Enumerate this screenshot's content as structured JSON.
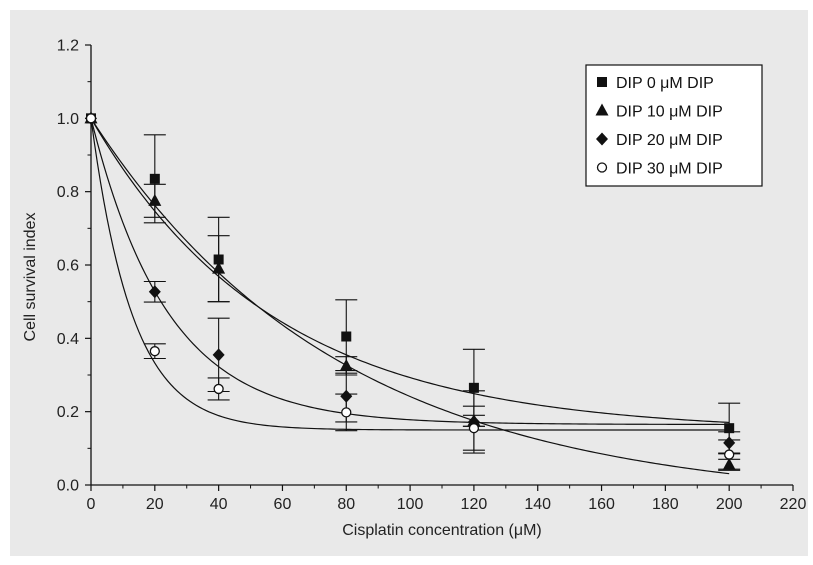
{
  "chart_data": {
    "type": "scatter",
    "title": "",
    "xlabel": "Cisplatin concentration (μM)",
    "ylabel": "Cell survival index",
    "xlim": [
      0,
      220
    ],
    "ylim": [
      0,
      1.2
    ],
    "x_ticks": [
      0,
      20,
      40,
      60,
      80,
      100,
      120,
      140,
      160,
      180,
      200,
      220
    ],
    "y_ticks": [
      0.0,
      0.2,
      0.4,
      0.6,
      0.8,
      1.0,
      1.2
    ],
    "x_tick_labels": [
      "0",
      "20",
      "40",
      "60",
      "80",
      "100",
      "120",
      "140",
      "160",
      "180",
      "200",
      "220"
    ],
    "y_tick_labels": [
      "0.0",
      "0.2",
      "0.4",
      "0.6",
      "0.8",
      "1.0",
      "1.2"
    ],
    "grid": false,
    "legend_position": "top-right",
    "fit_lines": true,
    "x": [
      0,
      20,
      40,
      80,
      120,
      200
    ],
    "series": [
      {
        "name": "DIP   0 μM DIP",
        "marker": "square-filled",
        "values": [
          1.0,
          0.835,
          0.615,
          0.405,
          0.265,
          0.155
        ],
        "errors": [
          0,
          0.12,
          0.115,
          0.1,
          0.105,
          0.068
        ],
        "fit": {
          "y0": 0.145,
          "A": 0.855,
          "t": 57
        }
      },
      {
        "name": "DIP 10 μM DIP",
        "marker": "triangle-filled",
        "values": [
          1.0,
          0.775,
          0.59,
          0.325,
          0.175,
          0.055
        ],
        "errors": [
          0,
          0.045,
          0.09,
          0.025,
          0.015,
          0.015
        ],
        "fit": {
          "y0": -0.05,
          "A": 1.05,
          "t": 78
        }
      },
      {
        "name": "DIP 20 μM DIP",
        "marker": "diamond-filled",
        "values": [
          1.0,
          0.527,
          0.355,
          0.242,
          0.172,
          0.115
        ],
        "errors": [
          0,
          0.028,
          0.1,
          0.07,
          0.085,
          0.03
        ],
        "fit": {
          "y0": 0.165,
          "A": 0.835,
          "t": 24
        }
      },
      {
        "name": "DIP 30 μM DIP",
        "marker": "circle-open",
        "values": [
          1.0,
          0.365,
          0.262,
          0.198,
          0.155,
          0.083
        ],
        "errors": [
          0,
          0.02,
          0.03,
          0.05,
          0.06,
          0.04
        ],
        "fit": {
          "y0": 0.15,
          "A": 0.85,
          "t": 13
        }
      }
    ]
  }
}
